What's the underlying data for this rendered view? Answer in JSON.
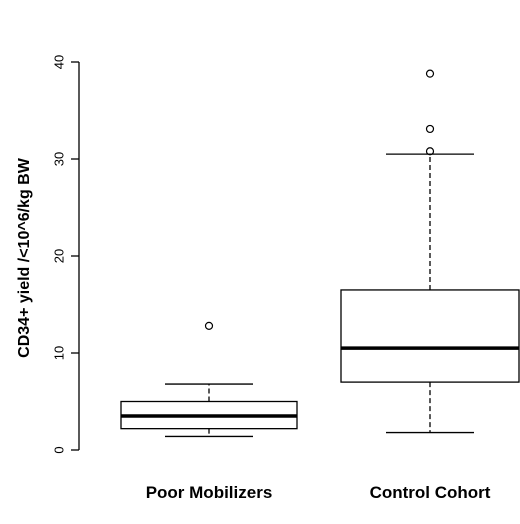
{
  "chart_data": {
    "type": "boxplot",
    "title": "",
    "xlabel": "",
    "ylabel": "CD34+ yield /<10^6/kg BW",
    "ylim": [
      0,
      40
    ],
    "y_ticks": [
      "0",
      "10",
      "20",
      "30",
      "40"
    ],
    "categories": [
      "Poor Mobilizers",
      "Control Cohort"
    ],
    "boxes": [
      {
        "name": "Poor Mobilizers",
        "whisker_low": 1.4,
        "q1": 2.2,
        "median": 3.5,
        "q3": 5.0,
        "whisker_high": 6.8,
        "outliers": [
          12.8
        ]
      },
      {
        "name": "Control Cohort",
        "whisker_low": 1.8,
        "q1": 7.0,
        "median": 10.5,
        "q3": 16.5,
        "whisker_high": 30.5,
        "outliers": [
          30.8,
          33.1,
          38.8
        ]
      }
    ],
    "grid": false,
    "colors": {
      "stroke": "#000000",
      "box_fill": "#ffffff"
    }
  }
}
